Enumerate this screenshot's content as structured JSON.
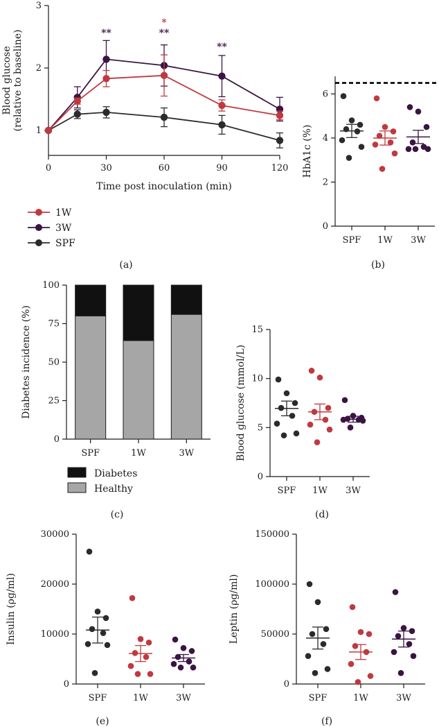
{
  "colors": {
    "SPF": "#2b2b2b",
    "1W": "#c0393f",
    "3W": "#3a1442",
    "diabetes": "#111111",
    "healthy": "#a6a6a6",
    "ref_line": "#000000"
  },
  "chart_data": [
    {
      "id": "a",
      "panel_label": "(a)",
      "type": "line",
      "xlabel": "Time post inoculation (min)",
      "ylabel": [
        "Blood glucose",
        "(relative to baseline)"
      ],
      "xlim": [
        0,
        120
      ],
      "ylim": [
        0.6,
        3
      ],
      "x_ticks": [
        0,
        30,
        60,
        90,
        120
      ],
      "y_ticks": [
        1,
        2,
        3
      ],
      "x": [
        0,
        15,
        30,
        60,
        90,
        120
      ],
      "series": [
        {
          "name": "1W",
          "values": [
            1.0,
            1.47,
            1.83,
            1.88,
            1.4,
            1.24
          ],
          "errors": [
            0,
            0.05,
            0.13,
            0.33,
            0.09,
            0.07
          ]
        },
        {
          "name": "3W",
          "values": [
            1.0,
            1.53,
            2.14,
            2.04,
            1.87,
            1.34
          ],
          "errors": [
            0,
            0.17,
            0.3,
            0.33,
            0.33,
            0.19
          ]
        },
        {
          "name": "SPF",
          "values": [
            1.0,
            1.26,
            1.29,
            1.21,
            1.09,
            0.84
          ],
          "errors": [
            0,
            0.07,
            0.09,
            0.15,
            0.15,
            0.12
          ]
        }
      ],
      "annotations": [
        {
          "x": 30,
          "y": 2.51,
          "text": "**",
          "color": "3W"
        },
        {
          "x": 60,
          "y": 2.68,
          "text": "*",
          "color": "1W"
        },
        {
          "x": 60,
          "y": 2.51,
          "text": "**",
          "color": "3W"
        },
        {
          "x": 90,
          "y": 2.29,
          "text": "**",
          "color": "3W"
        }
      ],
      "legend": [
        "1W",
        "3W",
        "SPF"
      ],
      "legend_position": "below"
    },
    {
      "id": "b",
      "panel_label": "(b)",
      "type": "scatter",
      "ylabel": "HbA1c (%)",
      "ylim": [
        0,
        6.8
      ],
      "y_ticks": [
        0,
        2,
        4,
        6
      ],
      "categories": [
        "SPF",
        "1W",
        "3W"
      ],
      "reference_line": 6.5,
      "groups": [
        {
          "name": "SPF",
          "points": [
            5.9,
            4.8,
            4.6,
            4.4,
            4.3,
            3.9,
            3.6,
            3.1
          ],
          "mean": 4.32,
          "sem": 0.3
        },
        {
          "name": "1W",
          "points": [
            5.8,
            4.5,
            4.3,
            4.1,
            3.8,
            3.7,
            3.3,
            2.6
          ],
          "mean": 4.0,
          "sem": 0.32
        },
        {
          "name": "3W",
          "points": [
            5.4,
            5.2,
            4.5,
            3.8,
            3.6,
            3.5,
            3.5,
            3.5
          ],
          "mean": 4.05,
          "sem": 0.3
        }
      ]
    },
    {
      "id": "c",
      "panel_label": "(c)",
      "type": "bar",
      "stacked": true,
      "ylabel": "Diabetes incidence (%)",
      "ylim": [
        0,
        100
      ],
      "y_ticks": [
        0,
        25,
        50,
        75,
        100
      ],
      "categories": [
        "SPF",
        "1W",
        "3W"
      ],
      "series": [
        {
          "name": "Healthy",
          "values": [
            80,
            64,
            81
          ]
        },
        {
          "name": "Diabetes",
          "values": [
            20,
            36,
            19
          ]
        }
      ],
      "legend": [
        "Diabetes",
        "Healthy"
      ],
      "legend_position": "below"
    },
    {
      "id": "d",
      "panel_label": "(d)",
      "type": "scatter",
      "ylabel": "Blood glucose (mmol/L)",
      "ylim": [
        0,
        15
      ],
      "y_ticks": [
        0,
        5,
        10,
        15
      ],
      "categories": [
        "SPF",
        "1W",
        "3W"
      ],
      "groups": [
        {
          "name": "SPF",
          "points": [
            9.9,
            8.5,
            7.5,
            7.0,
            6.2,
            5.4,
            4.4,
            4.2
          ],
          "mean": 6.95,
          "sem": 0.75
        },
        {
          "name": "1W",
          "points": [
            10.8,
            10.1,
            7.0,
            6.6,
            5.8,
            5.3,
            4.8,
            3.5
          ],
          "mean": 6.6,
          "sem": 0.8
        },
        {
          "name": "3W",
          "points": [
            7.8,
            6.2,
            6.0,
            5.9,
            5.8,
            5.8,
            5.7,
            5.0
          ],
          "mean": 5.85,
          "sem": 0.3
        }
      ]
    },
    {
      "id": "e",
      "panel_label": "(e)",
      "type": "scatter",
      "ylabel": "Insulin (ρg/ml)",
      "ylim": [
        0,
        30000
      ],
      "y_ticks": [
        0,
        10000,
        20000,
        30000
      ],
      "categories": [
        "SPF",
        "1W",
        "3W"
      ],
      "groups": [
        {
          "name": "SPF",
          "points": [
            26500,
            14500,
            13200,
            11000,
            10200,
            8000,
            7800,
            2200
          ],
          "mean": 10800,
          "sem": 2600
        },
        {
          "name": "1W",
          "points": [
            17200,
            9000,
            8300,
            6200,
            5400,
            3600,
            2000,
            2000
          ],
          "mean": 6100,
          "sem": 1600
        },
        {
          "name": "3W",
          "points": [
            8900,
            7200,
            6600,
            5400,
            4500,
            4000,
            3300,
            3300
          ],
          "mean": 5200,
          "sem": 700
        }
      ]
    },
    {
      "id": "f",
      "panel_label": "(f)",
      "type": "scatter",
      "ylabel": "Leptin (ρg/ml)",
      "ylim": [
        0,
        150000
      ],
      "y_ticks": [
        0,
        50000,
        100000,
        150000
      ],
      "categories": [
        "SPF",
        "1W",
        "3W"
      ],
      "groups": [
        {
          "name": "SPF",
          "points": [
            100000,
            82000,
            55000,
            50000,
            40000,
            28000,
            15000,
            11000
          ],
          "mean": 46000,
          "sem": 11000
        },
        {
          "name": "1W",
          "points": [
            77000,
            52000,
            50000,
            38000,
            32000,
            20000,
            8000,
            2000
          ],
          "mean": 32000,
          "sem": 7500
        },
        {
          "name": "3W",
          "points": [
            92000,
            56000,
            53000,
            48000,
            40000,
            32000,
            28000,
            11000
          ],
          "mean": 45000,
          "sem": 8000
        }
      ]
    }
  ]
}
